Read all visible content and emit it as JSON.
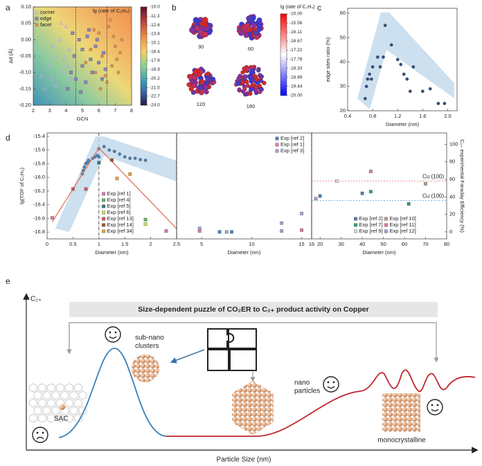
{
  "panel_labels": [
    "a",
    "b",
    "c",
    "d",
    "e"
  ],
  "chart_data": [
    {
      "type": "scatter",
      "xlabel": "GCN",
      "ylabel": "Δd (Å)",
      "xlim": [
        2,
        8
      ],
      "xticks": [
        2,
        3,
        4,
        5,
        6,
        7,
        8
      ],
      "ylim": [
        -0.2,
        0.1
      ],
      "yticks": [
        {
          "value": 0.1,
          "label": "0.10"
        },
        0.05,
        {
          "value": 0,
          "label": "0.00"
        },
        -0.05,
        {
          "value": -0.1,
          "label": "-0.10"
        },
        -0.15,
        {
          "value": -0.2,
          "label": "-0.20"
        }
      ],
      "vlines": [
        4.6,
        6.5
      ],
      "legend": "upper left",
      "colorbar": {
        "title": "lg (rate of C₂H₄)",
        "ticks": [
          {
            "value": -10,
            "label": "-10.0"
          },
          -11.3,
          -12.6,
          -13.8,
          -15.1,
          -16.4,
          -17.6,
          -18.9,
          -20.2,
          -21.5,
          -22.7,
          {
            "value": -24,
            "label": "-24.0"
          }
        ]
      },
      "series": [
        {
          "name": "corner",
          "color": "#b3a9e0",
          "marker": "triangle",
          "x": [
            2.5,
            2.7,
            3.0,
            3.1,
            3.3,
            3.4,
            3.6,
            3.8,
            3.9,
            4.0,
            4.2,
            4.3,
            4.4,
            3.2,
            3.7,
            4.1
          ],
          "values": [
            -0.11,
            -0.15,
            -0.08,
            -0.12,
            -0.05,
            -0.14,
            0.0,
            -0.1,
            -0.06,
            0.04,
            -0.03,
            -0.12,
            0.02,
            -0.02,
            0.05,
            -0.08
          ]
        },
        {
          "name": "edge",
          "color": "#8d82c4",
          "marker": "square",
          "x": [
            4.1,
            4.3,
            4.5,
            4.6,
            4.8,
            5.0,
            5.0,
            5.2,
            5.3,
            5.5,
            5.6,
            5.8,
            6.0,
            6.2,
            6.3,
            4.4,
            4.9,
            5.4,
            5.9,
            6.4
          ],
          "values": [
            -0.15,
            -0.1,
            -0.05,
            -0.12,
            0.0,
            -0.08,
            -0.03,
            -0.13,
            0.01,
            -0.06,
            -0.1,
            -0.02,
            -0.07,
            -0.12,
            -0.04,
            0.02,
            -0.16,
            0.03,
            0.0,
            -0.09
          ]
        },
        {
          "name": "facet",
          "color": "#e8904a",
          "marker": "circle",
          "x": [
            5.2,
            5.5,
            5.8,
            6.0,
            6.2,
            6.5,
            6.6,
            6.8,
            7.0,
            7.2,
            7.4,
            6.1,
            6.7,
            7.1,
            5.7,
            6.4,
            6.9,
            7.3
          ],
          "values": [
            -0.07,
            -0.03,
            -0.1,
            0.02,
            -0.05,
            -0.13,
            0.04,
            -0.08,
            -0.02,
            -0.1,
            0.0,
            -0.15,
            0.06,
            -0.06,
            0.03,
            -0.11,
            0.01,
            -0.04
          ]
        }
      ]
    },
    {
      "type": "scatter",
      "xlabel": "Diameter (nm)",
      "ylabel": "edge sites ratio (%)",
      "xlim": [
        0.4,
        2.15
      ],
      "xticks": [
        0.4,
        0.8,
        1.2,
        1.6,
        {
          "value": 2,
          "label": "2.0"
        }
      ],
      "ylim": [
        20,
        62
      ],
      "yticks": [
        20,
        30,
        40,
        50,
        60
      ],
      "series": [
        {
          "color": "#2f4f7f",
          "marker": "circle",
          "x": [
            0.68,
            0.7,
            0.72,
            0.75,
            0.78,
            0.8,
            0.88,
            0.92,
            0.97,
            1.0,
            1.1,
            1.2,
            1.25,
            1.3,
            1.35,
            1.4,
            1.45,
            1.6,
            1.72,
            1.85,
            1.95
          ],
          "values": [
            25,
            30,
            33,
            35,
            33,
            38,
            42,
            38,
            42,
            55,
            47,
            41,
            39,
            35,
            33,
            28,
            38,
            28,
            29,
            23,
            23
          ]
        }
      ]
    },
    {
      "type": "scatter",
      "xlabel": "Diameter (nm)",
      "ylabel": "lg(TOF of C₂H₄)",
      "y2label": "C₂₊ experimental Faraday Efficiency (%)",
      "xlim": [
        0,
        2.5
      ],
      "xticks": [
        0,
        0.5,
        1,
        1.5,
        2,
        2.5
      ],
      "ylim": [
        -16.9,
        -15.35
      ],
      "yticks": [
        -15.4,
        -15.6,
        -15.8,
        {
          "value": -16,
          "label": "-16.0"
        },
        -16.2,
        -16.4,
        -16.6,
        -16.8
      ],
      "y2lim": [
        -8,
        113
      ],
      "y2ticks": [
        0,
        20,
        40,
        60,
        80,
        100
      ],
      "vlines": [
        1
      ],
      "legend": "lower center",
      "series": [
        {
          "color": "#4a7fb5",
          "marker": "circle",
          "x": [
            0.68,
            0.7,
            0.72,
            0.75,
            0.78,
            0.8,
            0.88,
            0.92,
            0.97,
            1.0,
            1.0,
            1.1,
            1.2,
            1.3,
            1.4,
            1.5,
            1.6,
            1.7,
            1.8,
            1.9
          ],
          "values": [
            -15.95,
            -15.9,
            -15.85,
            -15.8,
            -15.78,
            -15.75,
            -15.72,
            -15.7,
            -15.68,
            -15.7,
            -15.58,
            -15.55,
            -15.6,
            -15.62,
            -15.66,
            -15.7,
            -15.72,
            -15.72,
            -15.74,
            -15.75
          ]
        },
        {
          "type": "line",
          "color": "#e0735a",
          "x": [
            0.1,
            1.0,
            2.5
          ],
          "values": [
            -16.65,
            -15.57,
            -16.75
          ]
        },
        {
          "name": "Exp [ref 1]",
          "color": "#e377a8",
          "marker": "square",
          "axis": "y2",
          "x": [
            0.1,
            2.3
          ],
          "values": [
            16,
            1
          ]
        },
        {
          "name": "Exp [ref 4]",
          "color": "#5cb85c",
          "marker": "square",
          "axis": "y2",
          "x": [
            1.9
          ],
          "values": [
            14
          ]
        },
        {
          "name": "Exp [ref 5]",
          "color": "#2e7d7d",
          "marker": "square",
          "axis": "y2",
          "x": [
            1.0
          ],
          "values": [
            79
          ]
        },
        {
          "name": "Exp [ref 6]",
          "color": "#d7e05a",
          "marker": "square",
          "axis": "y2",
          "x": [
            1.9
          ],
          "values": [
            9
          ]
        },
        {
          "name": "Exp [ref 13]",
          "color": "#d9534f",
          "marker": "square",
          "axis": "y2",
          "x": [
            0.5,
            0.75
          ],
          "values": [
            49,
            49
          ]
        },
        {
          "name": "Exp [ref 14]",
          "color": "#a0522d",
          "marker": "square",
          "axis": "y2",
          "x": [
            1.25
          ],
          "values": [
            82
          ]
        },
        {
          "name": "Exp [ref 34]",
          "color": "#f0a040",
          "marker": "square",
          "axis": "y2",
          "x": [
            1.35,
            1.6
          ],
          "values": [
            61,
            66
          ]
        }
      ]
    },
    {
      "type": "scatter",
      "xlim": [
        2.5,
        16
      ],
      "xticks": [
        5,
        10,
        15
      ],
      "xlabel": "Diameter (nm)",
      "legend": "upper right",
      "series": [
        {
          "name": "Exp [ref 2]",
          "color": "#4a7fb5",
          "marker": "square",
          "axis": "y2",
          "x": [
            6.8,
            8
          ],
          "values": [
            0,
            0
          ]
        },
        {
          "name": "Exp [ref 1]",
          "color": "#e377a8",
          "marker": "square",
          "axis": "y2",
          "x": [
            4.8,
            15
          ],
          "values": [
            1,
            2
          ]
        },
        {
          "name": "Exp [ref 3]",
          "color": "#a99fd6",
          "marker": "square",
          "axis": "y2",
          "x": [
            4.8,
            7.5,
            13,
            13,
            15
          ],
          "values": [
            4,
            0,
            1,
            10,
            21
          ]
        }
      ]
    },
    {
      "type": "scatter",
      "xlim": [
        16,
        80
      ],
      "xticks": [
        16,
        20,
        30,
        40,
        50,
        60,
        70,
        80
      ],
      "xlabel": "Diameter (nm)",
      "legend": "lower center",
      "legend_columns": 2,
      "hlines": [
        {
          "value": 58,
          "label": "Cu (100)",
          "color": "#e05050"
        },
        {
          "value": 36,
          "label": "Cu (100)",
          "color": "#3a9fd8"
        }
      ],
      "series": [
        {
          "name": "Exp [ref 2]",
          "color": "#4a7fb5",
          "marker": "square",
          "axis": "y2",
          "x": [
            20,
            40
          ],
          "values": [
            41,
            44
          ]
        },
        {
          "name": "Exp [ref 7]",
          "color": "#2e9d8d",
          "marker": "square",
          "axis": "y2",
          "x": [
            44,
            62
          ],
          "values": [
            46,
            32
          ]
        },
        {
          "name": "Exp [ref 9]",
          "color": "#dcdcdc",
          "marker": "square",
          "axis": "y2",
          "x": [
            28
          ],
          "values": [
            58
          ]
        },
        {
          "name": "Exp [ref 10]",
          "color": "#b8a08a",
          "marker": "square",
          "axis": "y2",
          "x": [
            70
          ],
          "values": [
            55
          ]
        },
        {
          "name": "Exp [ref 11]",
          "color": "#e377a8",
          "marker": "square",
          "axis": "y2",
          "x": [
            44
          ],
          "values": [
            69
          ]
        },
        {
          "name": "Exp [ref 12]",
          "color": "#a99fd6",
          "marker": "square",
          "axis": "y2",
          "x": [
            18
          ],
          "values": [
            38
          ]
        }
      ]
    }
  ],
  "panel_b": {
    "colorbar": {
      "title": "lg (rate of C₂H₄)",
      "ticks": [
        {
          "value": -15,
          "label": "-15.00"
        },
        {
          "value": -15.56,
          "label": "-15.56"
        },
        {
          "value": -16.11,
          "label": "-16.11"
        },
        {
          "value": -16.67,
          "label": "-16.67"
        },
        {
          "value": -17.22,
          "label": "-17.22"
        },
        {
          "value": -17.78,
          "label": "-17.78"
        },
        {
          "value": -18.33,
          "label": "-18.33"
        },
        {
          "value": -18.89,
          "label": "-18.89"
        },
        {
          "value": -19.44,
          "label": "-19.44"
        },
        {
          "value": -20,
          "label": "-20.00"
        }
      ]
    },
    "clusters": [
      30,
      60,
      120,
      180
    ]
  },
  "diagram": {
    "y_axis": "C₂₊",
    "x_axis": "Particle Size (nm)",
    "title": "Size-dependent puzzle of CO₂ER to C₂₊ product activity on Copper",
    "sub_nano": [
      "sub-nano",
      "clusters"
    ],
    "sac": "SAC",
    "nano": [
      "nano",
      "particles"
    ],
    "mono": "monocrystalline"
  }
}
